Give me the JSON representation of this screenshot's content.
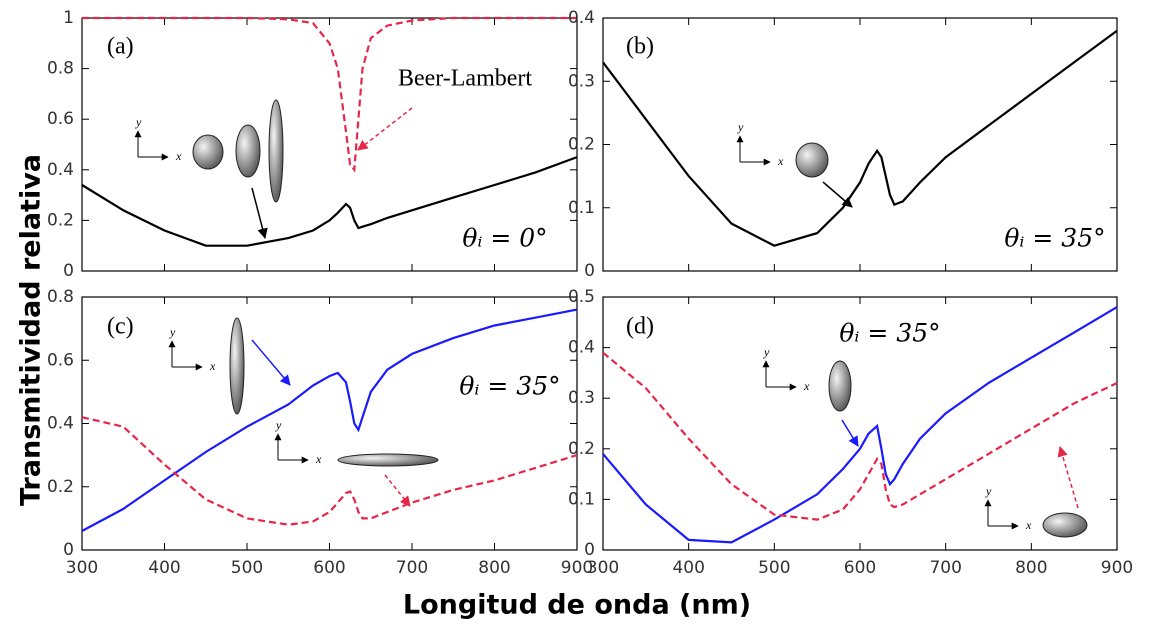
{
  "xlabel": "Longitud de onda (nm)",
  "ylabel": "Transmitividad relativa",
  "chart_data": [
    {
      "type": "line",
      "panel": "(a)",
      "annotation": "θᵢ = 0°",
      "callout": "Beer-Lambert",
      "x": [
        300,
        350,
        400,
        450,
        500,
        550,
        580,
        600,
        610,
        620,
        625,
        630,
        635,
        640,
        650,
        670,
        700,
        750,
        800,
        850,
        900
      ],
      "series": [
        {
          "color": "#000000",
          "dash": false,
          "values": [
            0.34,
            0.24,
            0.16,
            0.1,
            0.1,
            0.13,
            0.16,
            0.2,
            0.23,
            0.265,
            0.25,
            0.2,
            0.17,
            0.175,
            0.185,
            0.21,
            0.24,
            0.29,
            0.34,
            0.39,
            0.45
          ]
        },
        {
          "color": "#e8264a",
          "dash": true,
          "values": [
            1,
            1,
            1,
            1,
            1,
            0.995,
            0.98,
            0.9,
            0.8,
            0.55,
            0.42,
            0.4,
            0.6,
            0.8,
            0.92,
            0.97,
            0.99,
            1,
            1,
            1,
            1
          ]
        }
      ],
      "xlim": [
        300,
        900
      ],
      "xticks": [
        300,
        400,
        500,
        600,
        700,
        800,
        900
      ],
      "xtick_labels": false,
      "ylim": [
        0,
        1
      ],
      "yticks": [
        0,
        0.2,
        0.4,
        0.6,
        0.8,
        1
      ],
      "insets": [
        {
          "axis_labels": [
            "x",
            "y"
          ]
        }
      ]
    },
    {
      "type": "line",
      "panel": "(b)",
      "annotation": "θᵢ = 35°",
      "x": [
        300,
        350,
        400,
        450,
        500,
        550,
        580,
        600,
        610,
        620,
        625,
        630,
        635,
        640,
        650,
        670,
        700,
        750,
        800,
        850,
        900
      ],
      "series": [
        {
          "color": "#000000",
          "dash": false,
          "values": [
            0.33,
            0.24,
            0.15,
            0.075,
            0.04,
            0.06,
            0.1,
            0.14,
            0.17,
            0.19,
            0.18,
            0.15,
            0.12,
            0.105,
            0.11,
            0.14,
            0.18,
            0.23,
            0.28,
            0.33,
            0.38
          ]
        }
      ],
      "xlim": [
        300,
        900
      ],
      "xticks": [
        300,
        400,
        500,
        600,
        700,
        800,
        900
      ],
      "xtick_labels": false,
      "ylim": [
        0,
        0.4
      ],
      "yticks": [
        0,
        0.1,
        0.2,
        0.3,
        0.4
      ],
      "insets": [
        {
          "axis_labels": [
            "x",
            "y"
          ]
        }
      ]
    },
    {
      "type": "line",
      "panel": "(c)",
      "annotation": "θᵢ = 35°",
      "x": [
        300,
        350,
        400,
        450,
        500,
        550,
        580,
        600,
        610,
        620,
        625,
        630,
        635,
        640,
        650,
        670,
        700,
        750,
        800,
        850,
        900
      ],
      "series": [
        {
          "color": "#1a1aff",
          "dash": false,
          "values": [
            0.06,
            0.13,
            0.22,
            0.31,
            0.39,
            0.46,
            0.52,
            0.55,
            0.56,
            0.53,
            0.47,
            0.4,
            0.38,
            0.42,
            0.5,
            0.57,
            0.62,
            0.67,
            0.71,
            0.735,
            0.76
          ]
        },
        {
          "color": "#e8264a",
          "dash": true,
          "values": [
            0.42,
            0.39,
            0.27,
            0.16,
            0.1,
            0.08,
            0.09,
            0.12,
            0.15,
            0.18,
            0.185,
            0.16,
            0.12,
            0.1,
            0.1,
            0.12,
            0.15,
            0.19,
            0.22,
            0.26,
            0.3
          ]
        }
      ],
      "xlim": [
        300,
        900
      ],
      "xticks": [
        300,
        400,
        500,
        600,
        700,
        800,
        900
      ],
      "ylim": [
        0,
        0.8
      ],
      "yticks": [
        0,
        0.2,
        0.4,
        0.6,
        0.8
      ],
      "insets": [
        {
          "axis_labels": [
            "x",
            "y"
          ]
        },
        {
          "axis_labels": [
            "x",
            "y"
          ]
        }
      ]
    },
    {
      "type": "line",
      "panel": "(d)",
      "annotation": "θᵢ = 35°",
      "x": [
        300,
        350,
        400,
        450,
        500,
        550,
        580,
        600,
        610,
        620,
        625,
        630,
        635,
        640,
        650,
        670,
        700,
        750,
        800,
        850,
        900
      ],
      "series": [
        {
          "color": "#1a1aff",
          "dash": false,
          "values": [
            0.19,
            0.09,
            0.02,
            0.015,
            0.06,
            0.11,
            0.16,
            0.2,
            0.23,
            0.245,
            0.2,
            0.15,
            0.13,
            0.14,
            0.17,
            0.22,
            0.27,
            0.33,
            0.38,
            0.43,
            0.48
          ]
        },
        {
          "color": "#e8264a",
          "dash": true,
          "values": [
            0.39,
            0.32,
            0.22,
            0.13,
            0.07,
            0.06,
            0.08,
            0.12,
            0.15,
            0.18,
            0.17,
            0.12,
            0.09,
            0.085,
            0.09,
            0.11,
            0.14,
            0.19,
            0.24,
            0.29,
            0.33
          ]
        }
      ],
      "xlim": [
        300,
        900
      ],
      "xticks": [
        300,
        400,
        500,
        600,
        700,
        800,
        900
      ],
      "ylim": [
        0,
        0.5
      ],
      "yticks": [
        0,
        0.1,
        0.2,
        0.3,
        0.4,
        0.5
      ],
      "insets": [
        {
          "axis_labels": [
            "x",
            "y"
          ]
        },
        {
          "axis_labels": [
            "x",
            "y"
          ]
        }
      ]
    }
  ]
}
